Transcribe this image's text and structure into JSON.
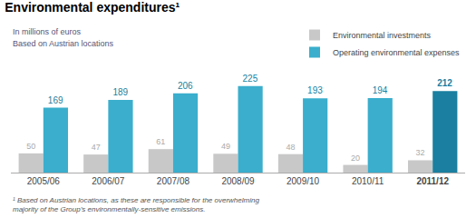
{
  "chart_data": {
    "type": "bar",
    "title": "Environmental expenditures¹",
    "subtitle": "In millions of euros",
    "annotations": [
      "Based on Austrian locations",
      "¹ Based on Austrian locations, as these are responsible for the overwhelming majority of the Group’s environmentally-sensitive emissions."
    ],
    "categories": [
      "2005/06",
      "2006/07",
      "2007/08",
      "2008/09",
      "2009/10",
      "2010/11",
      "2011/12"
    ],
    "series": [
      {
        "name": "Environmental investments",
        "color": "#c8c8c8",
        "values": [
          50,
          47,
          61,
          49,
          48,
          20,
          32
        ]
      },
      {
        "name": "Operating environmental expenses",
        "colors": [
          "#3aaecc",
          "#3aaecc",
          "#3aaecc",
          "#3aaecc",
          "#3aaecc",
          "#3aaecc",
          "#1a7fa0"
        ],
        "values": [
          169,
          189,
          206,
          225,
          193,
          194,
          212
        ]
      }
    ],
    "ylim": [
      0,
      260
    ],
    "yticks": [],
    "tick_labels": "x",
    "grid": false,
    "legend": "upper right",
    "data_labels": true
  }
}
